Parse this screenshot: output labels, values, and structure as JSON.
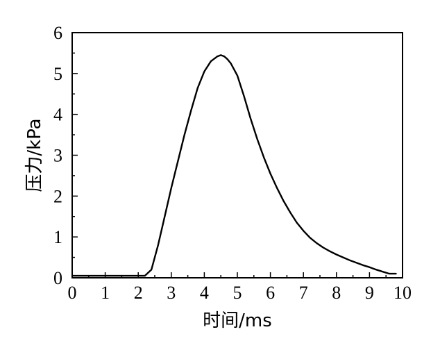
{
  "chart_data": {
    "type": "line",
    "title": "",
    "xlabel": "时间/ms",
    "ylabel": "压力/kPa",
    "xlim": [
      0,
      10
    ],
    "ylim": [
      0,
      6
    ],
    "x_ticks": [
      "0",
      "1",
      "2",
      "3",
      "4",
      "5",
      "6",
      "7",
      "8",
      "9",
      "10"
    ],
    "y_ticks": [
      "0",
      "1",
      "2",
      "3",
      "4",
      "5",
      "6"
    ],
    "grid": false,
    "legend": "none",
    "series": [
      {
        "color": "#000000",
        "x": [
          0,
          0.5,
          1,
          1.5,
          2,
          2.2,
          2.4,
          2.6,
          2.8,
          3.0,
          3.2,
          3.4,
          3.6,
          3.8,
          4.0,
          4.2,
          4.4,
          4.5,
          4.6,
          4.7,
          4.8,
          5.0,
          5.2,
          5.4,
          5.6,
          5.8,
          6.0,
          6.2,
          6.4,
          6.6,
          6.8,
          7.0,
          7.2,
          7.4,
          7.6,
          7.8,
          8.0,
          8.2,
          8.4,
          8.6,
          8.8,
          9.0,
          9.2,
          9.4,
          9.6,
          9.8
        ],
        "y": [
          0.05,
          0.05,
          0.05,
          0.05,
          0.05,
          0.05,
          0.2,
          0.8,
          1.5,
          2.2,
          2.85,
          3.5,
          4.1,
          4.65,
          5.05,
          5.3,
          5.42,
          5.45,
          5.42,
          5.35,
          5.25,
          4.95,
          4.45,
          3.9,
          3.4,
          2.95,
          2.55,
          2.2,
          1.88,
          1.6,
          1.35,
          1.15,
          0.98,
          0.85,
          0.74,
          0.65,
          0.57,
          0.5,
          0.43,
          0.37,
          0.31,
          0.26,
          0.2,
          0.15,
          0.1,
          0.1
        ]
      }
    ]
  }
}
